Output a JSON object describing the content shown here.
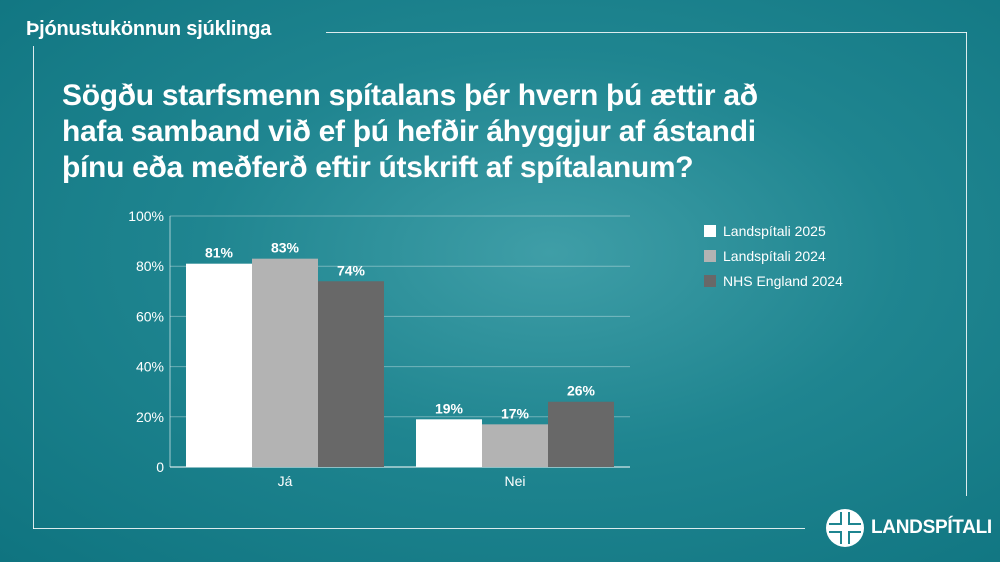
{
  "header": {
    "tag": "Þjónustukönnun sjúklinga"
  },
  "headline": "Sögðu starfsmenn spítalans þér hvern þú ættir að hafa samband við ef þú hefðir áhyggjur af ástandi þínu eða meðferð eftir útskrift af spítalanum?",
  "chart_data": {
    "type": "bar",
    "title": "",
    "xlabel": "",
    "ylabel": "",
    "categories": [
      "Já",
      "Nei"
    ],
    "series": [
      {
        "name": "Landspítali 2025",
        "color": "#ffffff",
        "values": [
          81,
          19
        ],
        "labels": [
          "81%",
          "19%"
        ]
      },
      {
        "name": "Landspítali 2024",
        "color": "#b3b3b3",
        "values": [
          83,
          17
        ],
        "labels": [
          "83%",
          "17%"
        ]
      },
      {
        "name": "NHS England 2024",
        "color": "#686868",
        "values": [
          74,
          26
        ],
        "labels": [
          "74%",
          "26%"
        ]
      }
    ],
    "ylim": [
      0,
      100
    ],
    "yticks": [
      "0",
      "20%",
      "40%",
      "60%",
      "80%",
      "100%"
    ],
    "grid": true,
    "legend_position": "right"
  },
  "brand": {
    "name": "LANDSPÍTALI",
    "icon": "cross-logo-icon"
  }
}
